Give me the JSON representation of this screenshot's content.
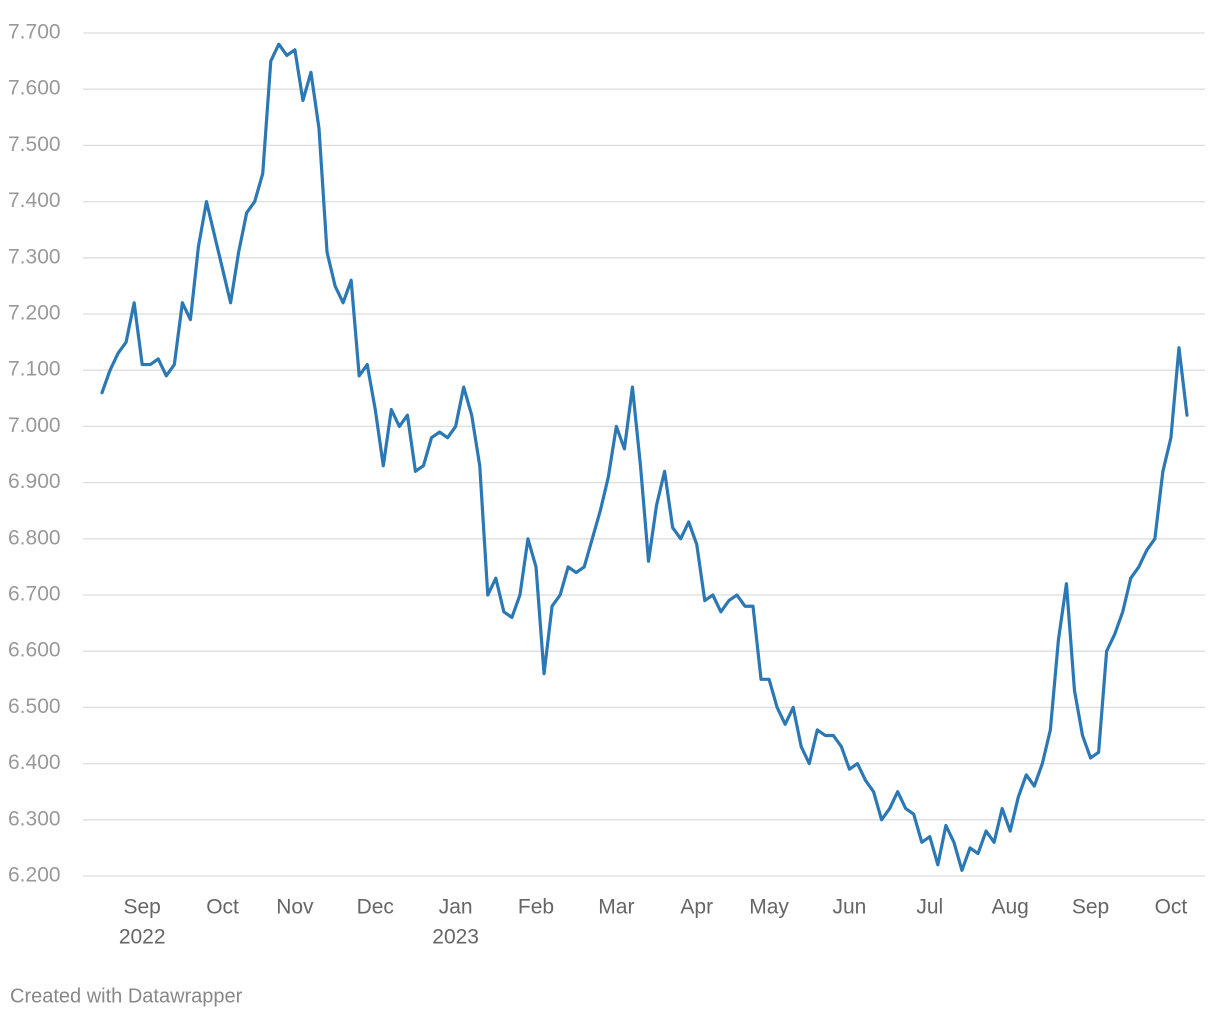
{
  "chart_data": {
    "type": "line",
    "footer": "Created with Datawrapper",
    "color": "#2b78b4",
    "grid": true,
    "categories": [
      null,
      null,
      null,
      null,
      null,
      "Sep",
      null,
      null,
      null,
      null,
      null,
      null,
      null,
      null,
      null,
      "Oct",
      null,
      null,
      null,
      null,
      null,
      null,
      null,
      null,
      "Nov",
      null,
      null,
      null,
      null,
      null,
      null,
      null,
      null,
      null,
      "Dec",
      null,
      null,
      null,
      null,
      null,
      null,
      null,
      null,
      null,
      "Jan",
      null,
      null,
      null,
      null,
      null,
      null,
      null,
      null,
      null,
      "Feb",
      null,
      null,
      null,
      null,
      null,
      null,
      null,
      null,
      null,
      "Mar",
      null,
      null,
      null,
      null,
      null,
      null,
      null,
      null,
      null,
      "Apr",
      null,
      null,
      null,
      null,
      null,
      null,
      null,
      null,
      "May",
      null,
      null,
      null,
      null,
      null,
      null,
      null,
      null,
      null,
      "Jun",
      null,
      null,
      null,
      null,
      null,
      null,
      null,
      null,
      null,
      "Jul",
      null,
      null,
      null,
      null,
      null,
      null,
      null,
      null,
      null,
      "Aug",
      null,
      null,
      null,
      null,
      null,
      null,
      null,
      null,
      null,
      "Sep",
      null,
      null,
      null,
      null,
      null,
      null,
      null,
      null,
      null,
      "Oct",
      null,
      null
    ],
    "year_labels": [
      null,
      null,
      null,
      null,
      null,
      "2022",
      null,
      null,
      null,
      null,
      null,
      null,
      null,
      null,
      null,
      null,
      null,
      null,
      null,
      null,
      null,
      null,
      null,
      null,
      null,
      null,
      null,
      null,
      null,
      null,
      null,
      null,
      null,
      null,
      null,
      null,
      null,
      null,
      null,
      null,
      null,
      null,
      null,
      null,
      "2023",
      null,
      null,
      null,
      null,
      null,
      null,
      null,
      null,
      null,
      null,
      null,
      null,
      null,
      null,
      null,
      null,
      null,
      null,
      null,
      null,
      null,
      null,
      null,
      null,
      null,
      null,
      null,
      null,
      null,
      null,
      null,
      null,
      null,
      null,
      null,
      null,
      null,
      null,
      null,
      null,
      null,
      null,
      null,
      null,
      null,
      null,
      null,
      null,
      null,
      null,
      null,
      null,
      null,
      null,
      null,
      null,
      null,
      null,
      null,
      null,
      null,
      null,
      null,
      null,
      null,
      null,
      null,
      null,
      null,
      null,
      null,
      null,
      null,
      null,
      null,
      null,
      null,
      null,
      null,
      null,
      null,
      null,
      null,
      null,
      null,
      null,
      null,
      null,
      null,
      null,
      null
    ],
    "values": [
      7.06,
      7.1,
      7.13,
      7.15,
      7.22,
      7.11,
      7.11,
      7.12,
      7.09,
      7.11,
      7.22,
      7.19,
      7.32,
      7.4,
      7.34,
      7.28,
      7.22,
      7.31,
      7.38,
      7.4,
      7.45,
      7.65,
      7.68,
      7.66,
      7.67,
      7.58,
      7.63,
      7.53,
      7.31,
      7.25,
      7.22,
      7.26,
      7.09,
      7.11,
      7.03,
      6.93,
      7.03,
      7.0,
      7.02,
      6.92,
      6.93,
      6.98,
      6.99,
      6.98,
      7.0,
      7.07,
      7.02,
      6.93,
      6.7,
      6.73,
      6.67,
      6.66,
      6.7,
      6.8,
      6.75,
      6.56,
      6.68,
      6.7,
      6.75,
      6.74,
      6.75,
      6.8,
      6.85,
      6.91,
      7.0,
      6.96,
      7.07,
      6.93,
      6.76,
      6.86,
      6.92,
      6.82,
      6.8,
      6.83,
      6.79,
      6.69,
      6.7,
      6.67,
      6.69,
      6.7,
      6.68,
      6.68,
      6.55,
      6.55,
      6.5,
      6.47,
      6.5,
      6.43,
      6.4,
      6.46,
      6.45,
      6.45,
      6.43,
      6.39,
      6.4,
      6.37,
      6.35,
      6.3,
      6.32,
      6.35,
      6.32,
      6.31,
      6.26,
      6.27,
      6.22,
      6.29,
      6.26,
      6.21,
      6.25,
      6.24,
      6.28,
      6.26,
      6.32,
      6.28,
      6.34,
      6.38,
      6.36,
      6.4,
      6.46,
      6.62,
      6.72,
      6.53,
      6.45,
      6.41,
      6.42,
      6.6,
      6.63,
      6.67,
      6.73,
      6.75,
      6.78,
      6.8,
      6.92,
      6.98,
      7.14,
      7.02
    ],
    "ylim": [
      6.2,
      7.7
    ],
    "yticks": [
      {
        "value": 6.2,
        "label": "6.200"
      },
      {
        "value": 6.3,
        "label": "6.300"
      },
      {
        "value": 6.4,
        "label": "6.400"
      },
      {
        "value": 6.5,
        "label": "6.500"
      },
      {
        "value": 6.6,
        "label": "6.600"
      },
      {
        "value": 6.7,
        "label": "6.700"
      },
      {
        "value": 6.8,
        "label": "6.800"
      },
      {
        "value": 6.9,
        "label": "6.900"
      },
      {
        "value": 7.0,
        "label": "7.000"
      },
      {
        "value": 7.1,
        "label": "7.100"
      },
      {
        "value": 7.2,
        "label": "7.200"
      },
      {
        "value": 7.3,
        "label": "7.300"
      },
      {
        "value": 7.4,
        "label": "7.400"
      },
      {
        "value": 7.5,
        "label": "7.500"
      },
      {
        "value": 7.6,
        "label": "7.600"
      },
      {
        "value": 7.7,
        "label": "7.700"
      }
    ]
  }
}
